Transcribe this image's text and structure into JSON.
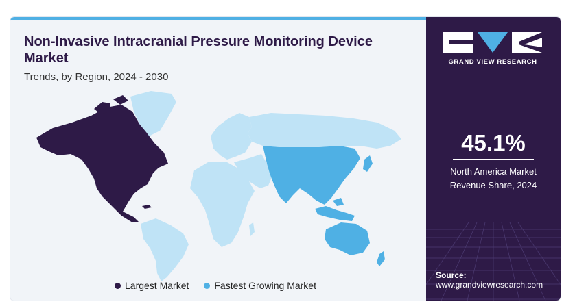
{
  "header": {
    "title": "Non-Invasive Intracranial Pressure Monitoring Device Market",
    "subtitle": "Trends, by Region, 2024 - 2030"
  },
  "legend": [
    {
      "label": "Largest Market",
      "color": "#2e1a47"
    },
    {
      "label": "Fastest Growing Market",
      "color": "#4fb0e4"
    }
  ],
  "map_colors": {
    "default": "#bfe3f6",
    "largest": "#2e1a47",
    "fastest": "#4fb0e4"
  },
  "sidebar": {
    "brand": "GRAND VIEW RESEARCH",
    "stat_value": "45.1%",
    "stat_label_line1": "North America Market",
    "stat_label_line2": "Revenue Share, 2024",
    "source_label": "Source:",
    "source_url": "www.grandviewresearch.com"
  }
}
